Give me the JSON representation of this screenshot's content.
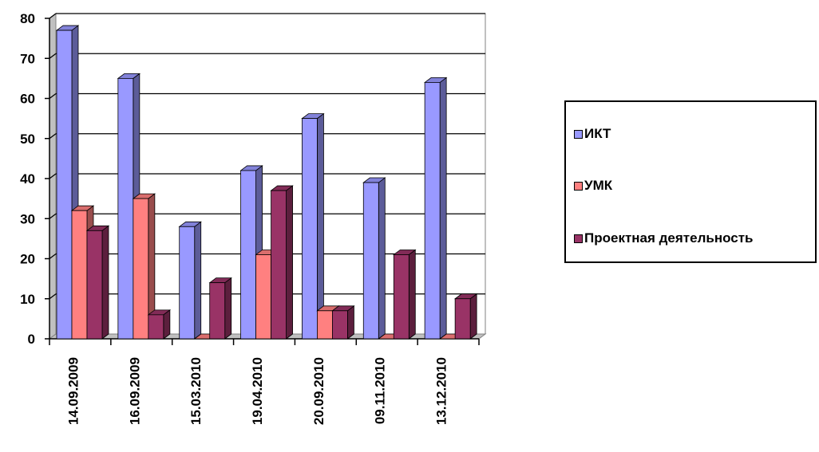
{
  "chart_data": {
    "type": "bar",
    "categories": [
      "14.09.2009",
      "16.09.2009",
      "15.03.2010",
      "19.04.2010",
      "20.09.2010",
      "09.11.2010",
      "13.12.2010"
    ],
    "series": [
      {
        "name": "ИКТ",
        "values": [
          77,
          65,
          28,
          42,
          55,
          39,
          64
        ],
        "color": "#9999ff"
      },
      {
        "name": "УМК",
        "values": [
          32,
          35,
          0,
          21,
          7,
          0,
          0
        ],
        "color": "#ff8080"
      },
      {
        "name": "Проектная деятельность",
        "values": [
          27,
          6,
          14,
          37,
          7,
          21,
          10
        ],
        "color": "#993366"
      }
    ],
    "yticks": [
      0,
      10,
      20,
      30,
      40,
      50,
      60,
      70,
      80
    ],
    "ylim": [
      0,
      80
    ],
    "grid": true,
    "legend_position": "right",
    "style": "3d-clustered-column"
  }
}
